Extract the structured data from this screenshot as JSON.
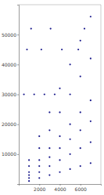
{
  "chart_data": {
    "type": "scatter",
    "x": [
      1000,
      2000,
      3000,
      4000,
      5000,
      6000,
      7000,
      1000,
      2000,
      3000,
      4000,
      5000,
      6000,
      7000,
      1000,
      2000,
      3000,
      4000,
      5000,
      6000,
      7000,
      1000,
      2000,
      3000,
      4000,
      5000,
      6000,
      7000,
      1000,
      2000,
      3000,
      4000,
      5000,
      6000,
      7000,
      1000,
      2000,
      3000,
      4000,
      5000,
      6000,
      7000,
      500,
      1500,
      2500,
      3500,
      800,
      2200,
      4200,
      5800,
      1200,
      3100,
      6400
    ],
    "values": [
      1000,
      2000,
      3000,
      4000,
      5000,
      6000,
      7000,
      2000,
      4000,
      6000,
      8000,
      10000,
      12000,
      14000,
      3000,
      6000,
      9000,
      12000,
      15000,
      18000,
      21000,
      4000,
      8000,
      12000,
      16000,
      20000,
      24000,
      28000,
      6000,
      12000,
      18000,
      24000,
      30000,
      36000,
      42000,
      8000,
      16000,
      24000,
      32000,
      40000,
      48000,
      56000,
      30000,
      30000,
      30000,
      30000,
      45000,
      45000,
      45000,
      45000,
      52000,
      52000,
      52000
    ],
    "color": "#1a1a8c",
    "marker": "circle",
    "xlim": [
      0,
      8000
    ],
    "xticks": [
      2000,
      4000,
      6000
    ],
    "ylim": [
      0,
      60000
    ],
    "yticks": [
      10000,
      20000,
      30000,
      40000,
      50000
    ],
    "grid": false
  }
}
